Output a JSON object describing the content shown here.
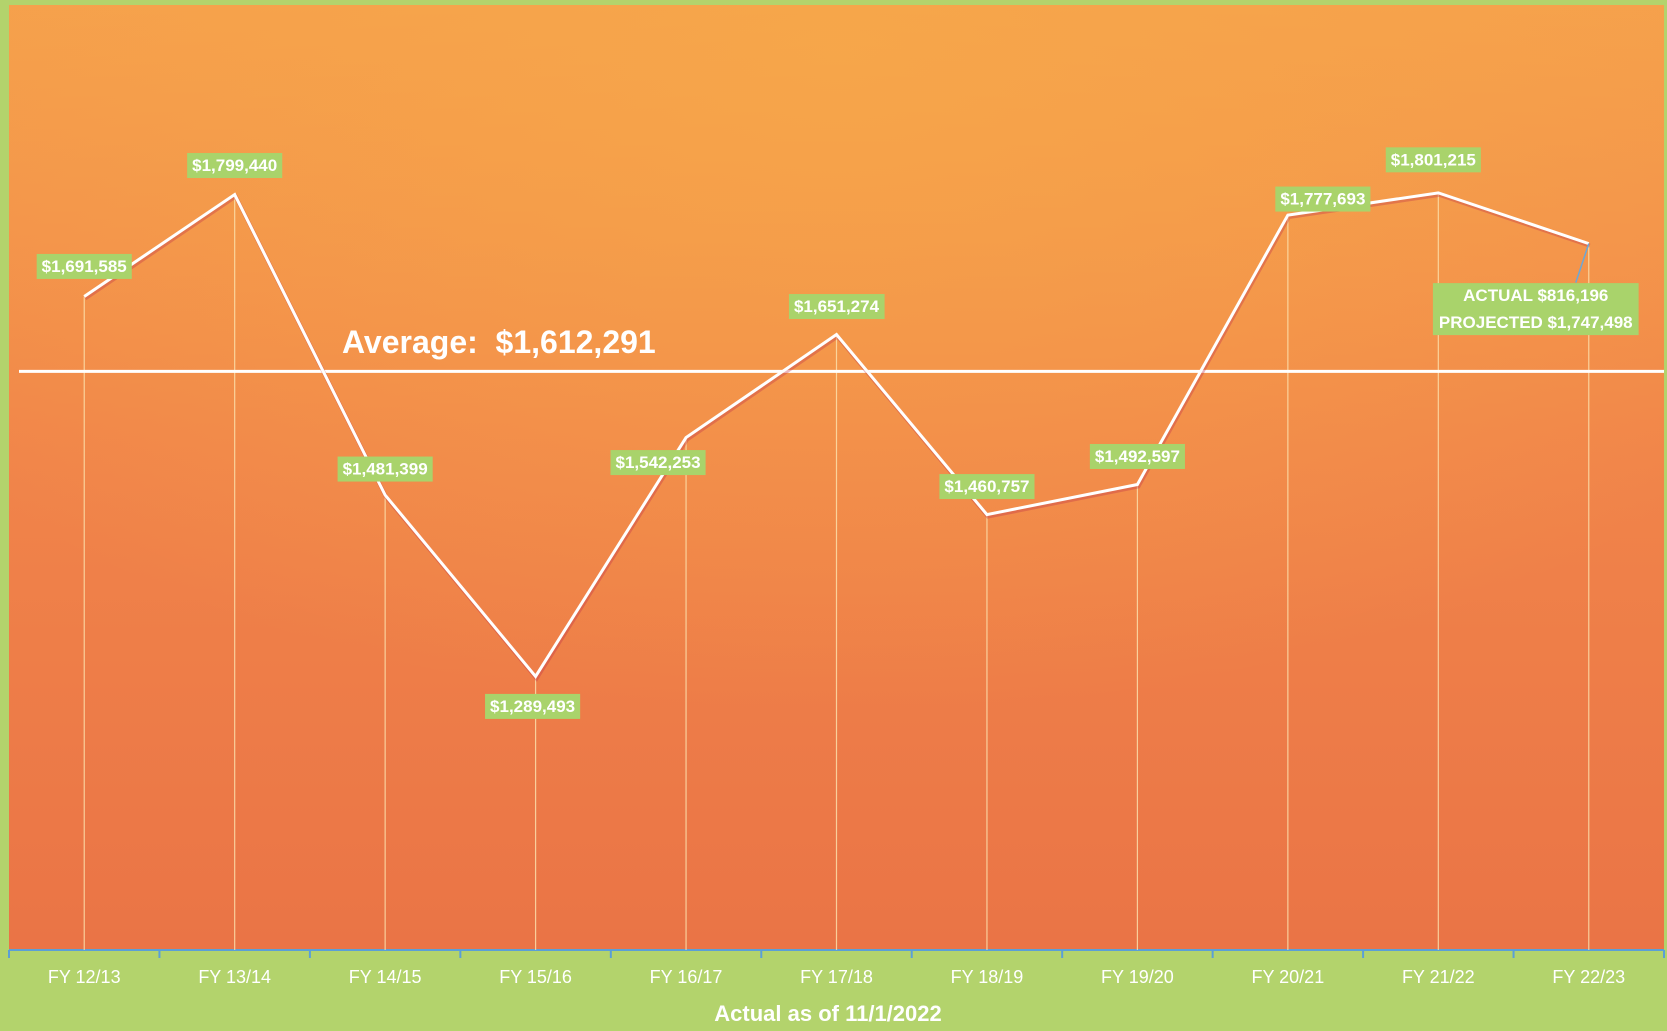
{
  "chart_data": {
    "type": "line",
    "categories": [
      "FY 12/13",
      "FY 13/14",
      "FY 14/15",
      "FY 15/16",
      "FY 16/17",
      "FY 17/18",
      "FY 18/19",
      "FY 19/20",
      "FY 20/21",
      "FY 21/22",
      "FY 22/23"
    ],
    "values": [
      1691585,
      1799440,
      1481399,
      1289493,
      1542253,
      1651274,
      1460757,
      1492597,
      1777693,
      1801215,
      1747498
    ],
    "value_labels": [
      "$1,691,585",
      "$1,799,440",
      "$1,481,399",
      "$1,289,493",
      "$1,542,253",
      "$1,651,274",
      "$1,460,757",
      "$1,492,597",
      "$1,777,693",
      "$1,801,215",
      "PROJECTED $1,747,498"
    ],
    "color": "#ffffff",
    "ylim": [
      1000000,
      2000000
    ],
    "average": {
      "value": 1612291,
      "label": "Average:  $1,612,291"
    },
    "annotations": [
      "ACTUAL $816,196"
    ],
    "x_label": "Actual as of 11/1/2022"
  }
}
